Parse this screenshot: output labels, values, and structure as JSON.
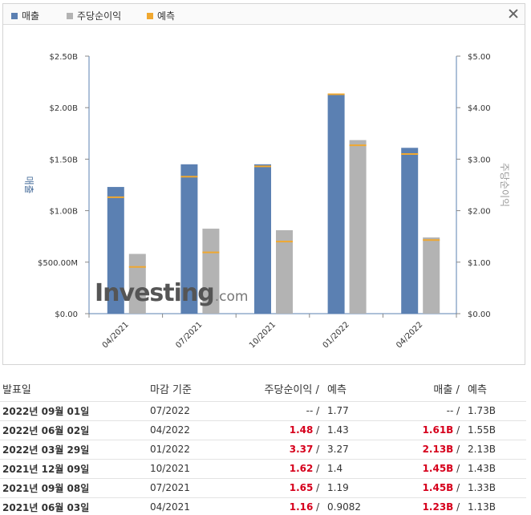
{
  "legend": {
    "items": [
      {
        "label": "매출",
        "color": "#5b80b2"
      },
      {
        "label": "주당순이익",
        "color": "#b3b3b3"
      },
      {
        "label": "예측",
        "color": "#f0a830"
      }
    ]
  },
  "chart_data": {
    "type": "bar",
    "categories": [
      "04/2021",
      "07/2021",
      "10/2021",
      "01/2022",
      "04/2022"
    ],
    "series": [
      {
        "name": "매출",
        "axis": "left",
        "color": "#5b80b2",
        "values": [
          1.23,
          1.45,
          1.45,
          2.13,
          1.61
        ]
      },
      {
        "name": "주당순이익",
        "axis": "right",
        "color": "#b3b3b3",
        "values": [
          1.16,
          1.65,
          1.62,
          3.37,
          1.48
        ]
      }
    ],
    "forecast": {
      "name": "예측",
      "color": "#f0a830",
      "revenue": [
        1.13,
        1.33,
        1.43,
        2.13,
        1.55
      ],
      "eps": [
        0.9082,
        1.19,
        1.4,
        3.27,
        1.43
      ]
    },
    "y_left": {
      "label": "매출",
      "range": [
        0,
        2.5
      ],
      "ticks": [
        "$0.00",
        "$500.00M",
        "$1.00B",
        "$1.50B",
        "$2.00B",
        "$2.50B"
      ]
    },
    "y_right": {
      "label": "주당순이익",
      "range": [
        0,
        5
      ],
      "ticks": [
        "$0.00",
        "$1.00",
        "$2.00",
        "$3.00",
        "$4.00",
        "$5.00"
      ]
    },
    "grid": false,
    "legend_position": "top-left"
  },
  "watermark": {
    "main": "Investing",
    "suffix": ".com"
  },
  "table": {
    "headers": {
      "date": "발표일",
      "period": "마감 기준",
      "eps": "주당순이익",
      "eps_sep": " / ",
      "eps_forecast": "예측",
      "revenue": "매출",
      "rev_sep": " / ",
      "rev_forecast": "예측"
    },
    "rows": [
      {
        "date": "2022년 09월 01일",
        "period": "07/2022",
        "eps": "--",
        "eps_forecast": "1.77",
        "revenue": "--",
        "rev_forecast": "1.73B",
        "eps_beat": false,
        "rev_beat": false
      },
      {
        "date": "2022년 06월 02일",
        "period": "04/2022",
        "eps": "1.48",
        "eps_forecast": "1.43",
        "revenue": "1.61B",
        "rev_forecast": "1.55B",
        "eps_beat": true,
        "rev_beat": true
      },
      {
        "date": "2022년 03월 29일",
        "period": "01/2022",
        "eps": "3.37",
        "eps_forecast": "3.27",
        "revenue": "2.13B",
        "rev_forecast": "2.13B",
        "eps_beat": true,
        "rev_beat": true
      },
      {
        "date": "2021년 12월 09일",
        "period": "10/2021",
        "eps": "1.62",
        "eps_forecast": "1.4",
        "revenue": "1.45B",
        "rev_forecast": "1.43B",
        "eps_beat": true,
        "rev_beat": true
      },
      {
        "date": "2021년 09월 08일",
        "period": "07/2021",
        "eps": "1.65",
        "eps_forecast": "1.19",
        "revenue": "1.45B",
        "rev_forecast": "1.33B",
        "eps_beat": true,
        "rev_beat": true
      },
      {
        "date": "2021년 06월 03일",
        "period": "04/2021",
        "eps": "1.16",
        "eps_forecast": "0.9082",
        "revenue": "1.23B",
        "rev_forecast": "1.13B",
        "eps_beat": true,
        "rev_beat": true
      }
    ]
  }
}
